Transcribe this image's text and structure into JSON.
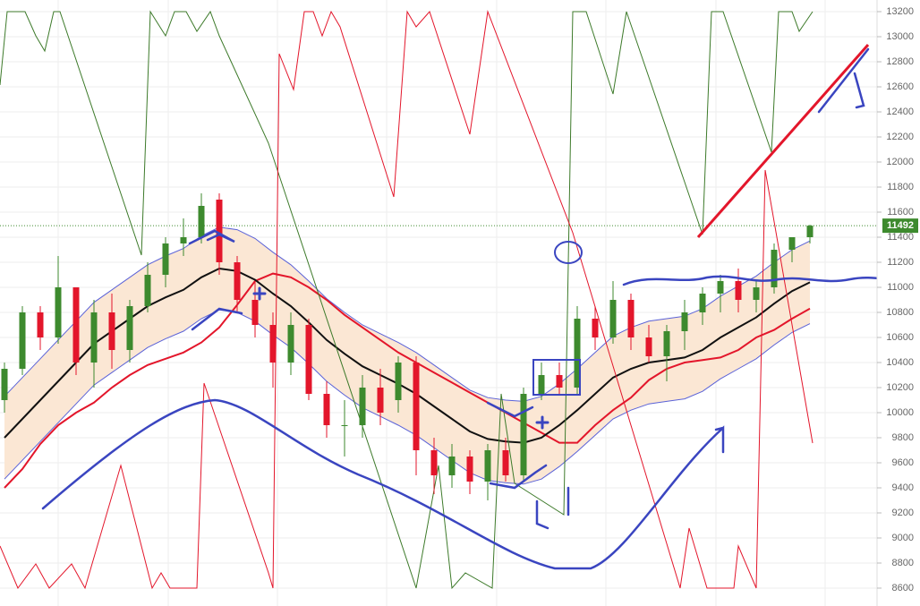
{
  "chart_data": {
    "type": "candlestick",
    "ylim": [
      8600,
      13200
    ],
    "yticks": [
      8600,
      8800,
      9000,
      9200,
      9400,
      9600,
      9800,
      10000,
      10200,
      10400,
      10600,
      10800,
      11000,
      11200,
      11400,
      11600,
      11800,
      12000,
      12200,
      12400,
      12600,
      12800,
      13000,
      13200
    ],
    "last_price": 11492,
    "up_color": "#3d8a2e",
    "down_color": "#e3162b",
    "open": [
      10100,
      10350,
      10800,
      10600,
      11000,
      10400,
      10800,
      10500,
      10850,
      11100,
      11350,
      11400,
      11700,
      11200,
      10900,
      10700,
      10400,
      10700,
      10150,
      9900,
      9900,
      10200,
      10100,
      10400,
      9700,
      9500,
      9650,
      9450,
      9700,
      9500,
      10150,
      10300,
      10200,
      10750,
      10600,
      10900,
      10600,
      10450,
      10650,
      10800,
      10950,
      11050,
      10900,
      11000,
      11300,
      11400
    ],
    "high": [
      10400,
      10850,
      10850,
      11250,
      11000,
      10900,
      10950,
      10900,
      11200,
      11400,
      11550,
      11750,
      11750,
      11250,
      11050,
      10800,
      10800,
      10750,
      10250,
      10100,
      10300,
      10350,
      10450,
      10450,
      9800,
      9750,
      9700,
      9750,
      9800,
      10200,
      10400,
      10400,
      10850,
      10850,
      11050,
      10950,
      10700,
      10700,
      10900,
      11000,
      11100,
      11150,
      11050,
      11350,
      11400,
      11500
    ],
    "low": [
      10000,
      10300,
      10500,
      10550,
      10300,
      10200,
      10350,
      10400,
      10800,
      11000,
      11250,
      11350,
      11100,
      10800,
      10600,
      10200,
      10300,
      10100,
      9800,
      9650,
      9800,
      9900,
      10000,
      9500,
      9350,
      9400,
      9350,
      9300,
      9450,
      9450,
      10100,
      10150,
      10150,
      10500,
      10550,
      10500,
      10400,
      10250,
      10500,
      10700,
      10800,
      10800,
      10800,
      10950,
      11200,
      11350
    ],
    "close": [
      10350,
      10800,
      10600,
      11000,
      10400,
      10800,
      10500,
      10850,
      11100,
      11350,
      11400,
      11650,
      11200,
      10900,
      10700,
      10400,
      10700,
      10150,
      9900,
      9900,
      10200,
      10000,
      10400,
      9700,
      9500,
      9650,
      9450,
      9700,
      9500,
      10150,
      10300,
      10200,
      10750,
      10600,
      10900,
      10600,
      10450,
      10650,
      10800,
      10950,
      11050,
      10900,
      11000,
      11300,
      11400,
      11492
    ],
    "middle": [
      9800,
      9950,
      10100,
      10250,
      10400,
      10550,
      10650,
      10750,
      10850,
      10920,
      10980,
      11080,
      11150,
      11130,
      11060,
      10950,
      10850,
      10720,
      10580,
      10470,
      10370,
      10300,
      10230,
      10150,
      10050,
      9950,
      9850,
      9790,
      9770,
      9760,
      9800,
      9900,
      10020,
      10150,
      10280,
      10350,
      10400,
      10420,
      10440,
      10500,
      10600,
      10680,
      10760,
      10870,
      10970,
      11040
    ],
    "upper": [
      10130,
      10280,
      10430,
      10580,
      10730,
      10880,
      10980,
      11080,
      11180,
      11250,
      11310,
      11410,
      11480,
      11460,
      11390,
      11280,
      11180,
      11050,
      10910,
      10800,
      10700,
      10630,
      10560,
      10480,
      10380,
      10280,
      10180,
      10120,
      10100,
      10090,
      10130,
      10230,
      10350,
      10480,
      10610,
      10680,
      10730,
      10750,
      10770,
      10830,
      10930,
      11010,
      11090,
      11200,
      11300,
      11370
    ],
    "lower": [
      9470,
      9620,
      9770,
      9920,
      10070,
      10220,
      10320,
      10420,
      10520,
      10590,
      10650,
      10750,
      10820,
      10800,
      10730,
      10620,
      10520,
      10390,
      10250,
      10140,
      10040,
      9970,
      9900,
      9820,
      9720,
      9620,
      9520,
      9460,
      9440,
      9430,
      9470,
      9570,
      9690,
      9820,
      9950,
      10020,
      10070,
      10090,
      10110,
      10170,
      10270,
      10350,
      10430,
      10540,
      10640,
      10710
    ],
    "slow": [
      9400,
      9550,
      9750,
      9900,
      10000,
      10080,
      10200,
      10300,
      10380,
      10430,
      10480,
      10560,
      10680,
      10860,
      11050,
      11110,
      11080,
      11000,
      10900,
      10780,
      10680,
      10580,
      10480,
      10400,
      10320,
      10240,
      10160,
      10080,
      10000,
      9920,
      9840,
      9760,
      9760,
      9900,
      10020,
      10120,
      10260,
      10350,
      10400,
      10420,
      10440,
      10500,
      10600,
      10660,
      10750,
      10830
    ]
  }
}
